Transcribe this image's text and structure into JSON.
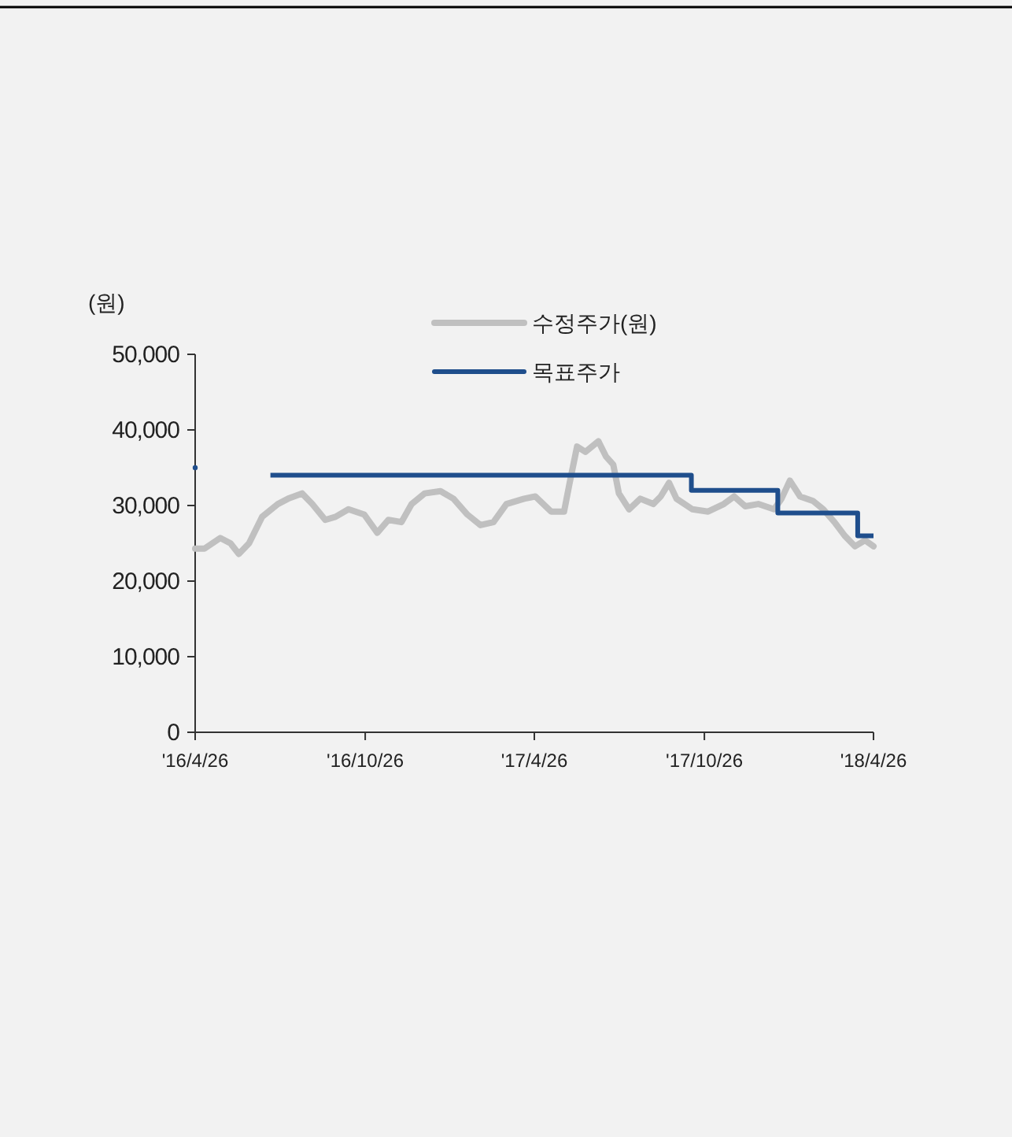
{
  "chart_data": {
    "type": "line",
    "ylabel": "(원)",
    "legend": "top",
    "xlim": [
      "2016-04-26",
      "2018-04-26"
    ],
    "xticks": [
      {
        "value": "2016-04-26",
        "label": "'16/4/26"
      },
      {
        "value": "2016-10-26",
        "label": "'16/10/26"
      },
      {
        "value": "2017-04-26",
        "label": "'17/4/26"
      },
      {
        "value": "2017-10-26",
        "label": "'17/10/26"
      },
      {
        "value": "2018-04-26",
        "label": "'18/4/26"
      }
    ],
    "ylim": [
      0,
      50000
    ],
    "yticks": [
      {
        "value": 0,
        "label": "0"
      },
      {
        "value": 10000,
        "label": "10,000"
      },
      {
        "value": 20000,
        "label": "20,000"
      },
      {
        "value": 30000,
        "label": "30,000"
      },
      {
        "value": 40000,
        "label": "40,000"
      },
      {
        "value": 50000,
        "label": "50,000"
      }
    ],
    "series": [
      {
        "name": "수정주가(원)",
        "color": "#c0c0c0",
        "x": [
          "2016-04-26",
          "2016-05-06",
          "2016-05-23",
          "2016-06-03",
          "2016-06-12",
          "2016-06-23",
          "2016-07-07",
          "2016-07-24",
          "2016-08-04",
          "2016-08-19",
          "2016-08-30",
          "2016-09-13",
          "2016-09-24",
          "2016-10-08",
          "2016-10-25",
          "2016-11-08",
          "2016-11-20",
          "2016-12-04",
          "2016-12-15",
          "2016-12-29",
          "2017-01-15",
          "2017-01-29",
          "2017-02-13",
          "2017-02-27",
          "2017-03-13",
          "2017-03-27",
          "2017-04-15",
          "2017-04-27",
          "2017-05-14",
          "2017-05-28",
          "2017-06-03",
          "2017-06-11",
          "2017-06-20",
          "2017-07-04",
          "2017-07-12",
          "2017-07-20",
          "2017-07-26",
          "2017-08-06",
          "2017-08-18",
          "2017-09-01",
          "2017-09-09",
          "2017-09-18",
          "2017-09-26",
          "2017-10-13",
          "2017-10-30",
          "2017-11-16",
          "2017-11-27",
          "2017-12-09",
          "2017-12-23",
          "2018-01-09",
          "2018-01-17",
          "2018-01-26",
          "2018-02-06",
          "2018-02-20",
          "2018-03-03",
          "2018-03-15",
          "2018-03-26",
          "2018-04-06",
          "2018-04-17",
          "2018-04-26"
        ],
        "values": [
          24300,
          24300,
          25700,
          25000,
          23600,
          25000,
          28500,
          30200,
          30900,
          31600,
          30200,
          28100,
          28500,
          29500,
          28800,
          26400,
          28100,
          27800,
          30200,
          31600,
          31900,
          30900,
          28800,
          27400,
          27800,
          30200,
          30900,
          31200,
          29200,
          29200,
          33000,
          37800,
          37100,
          38500,
          36500,
          35400,
          31600,
          29500,
          30900,
          30200,
          31200,
          33000,
          30900,
          29500,
          29200,
          30200,
          31200,
          29900,
          30200,
          29500,
          30900,
          33300,
          31200,
          30600,
          29500,
          27800,
          26000,
          24600,
          25400,
          24600
        ]
      },
      {
        "name": "목표주가",
        "color": "#1f4e8c",
        "type": "step",
        "x": [
          "2016-04-26",
          "2016-05-01",
          "2016-07-16",
          "2017-10-12",
          "2018-01-13",
          "2018-04-09",
          "2018-04-26"
        ],
        "values": [
          35000,
          null,
          34000,
          32000,
          29000,
          26000,
          26000
        ]
      }
    ]
  }
}
